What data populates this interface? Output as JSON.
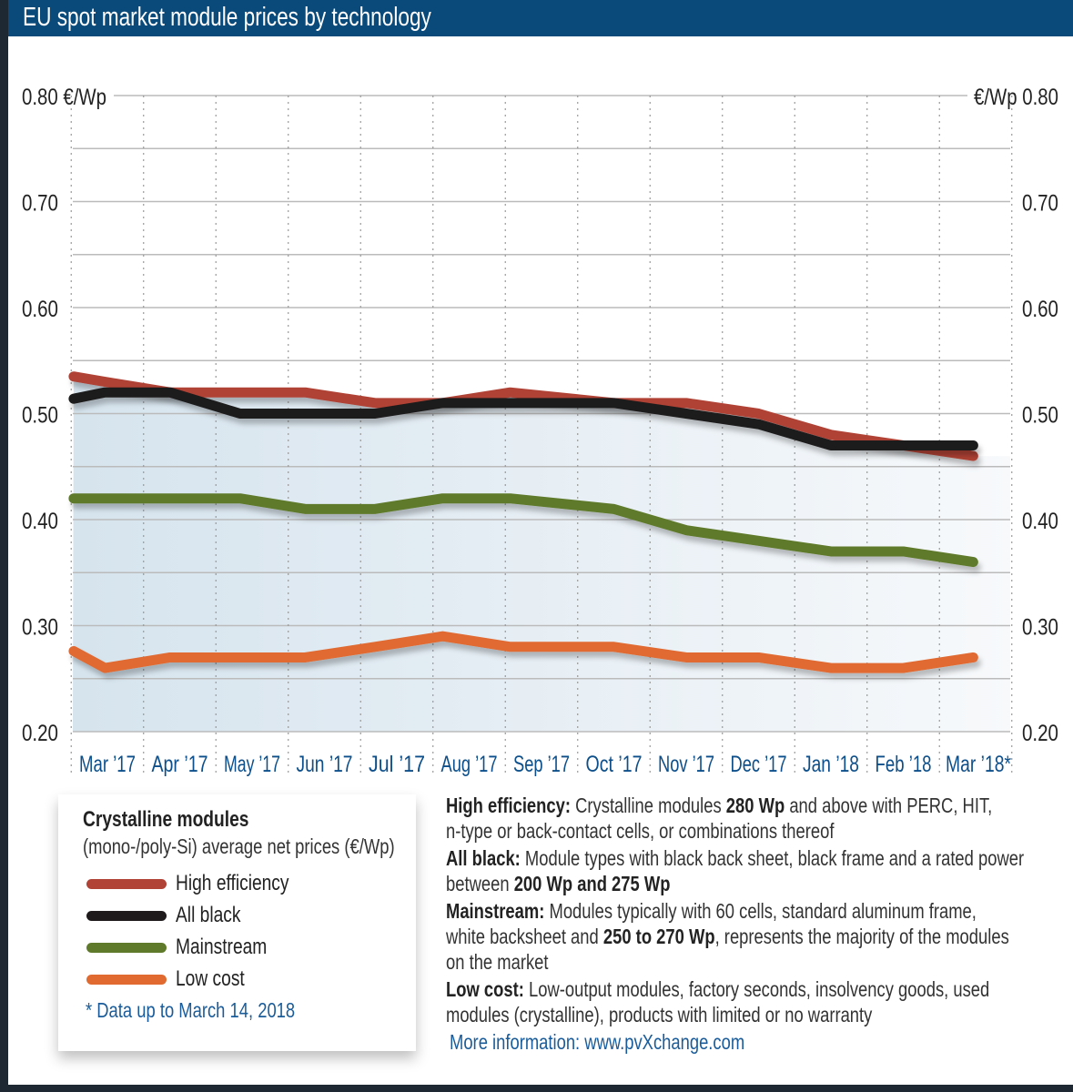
{
  "header": {
    "title": "EU spot market module prices  by technology"
  },
  "chart_data": {
    "type": "line",
    "title": "EU spot market module prices  by technology",
    "y_unit": "€/Wp",
    "ylim": [
      0.2,
      0.8
    ],
    "y_ticks": [
      "0.80",
      "0.70",
      "0.60",
      "0.50",
      "0.40",
      "0.30",
      "0.20"
    ],
    "y_top_left": "0.80 €/Wp",
    "y_top_right": "€/Wp 0.80",
    "x_ticks": [
      "Mar ’17",
      "Apr ’17",
      "May ’17",
      "Jun ’17",
      "Jul ’17",
      "Aug ’17",
      "Sep ’17",
      "Oct ’17",
      "Nov ’17",
      "Dec ’17",
      "Jan ’18",
      "Feb ’18",
      "Mar ’18*"
    ],
    "grid": true,
    "x": [
      "2017-03-01",
      "2017-03-14",
      "2017-04-11",
      "2017-05-10",
      "2017-06-07",
      "2017-07-06",
      "2017-08-04",
      "2017-09-02",
      "2017-10-15",
      "2017-11-15",
      "2017-12-15",
      "2018-01-15",
      "2018-02-15",
      "2018-03-14"
    ],
    "series": [
      {
        "name": "High efficiency",
        "color": "#b04236",
        "values": [
          0.535,
          0.53,
          0.52,
          0.52,
          0.52,
          0.51,
          0.51,
          0.52,
          0.51,
          0.51,
          0.5,
          0.48,
          0.47,
          0.46
        ]
      },
      {
        "name": "All black",
        "color": "#1e1a1b",
        "values": [
          0.514,
          0.52,
          0.52,
          0.5,
          0.5,
          0.5,
          0.51,
          0.51,
          0.51,
          0.5,
          0.49,
          0.47,
          0.47,
          0.47
        ]
      },
      {
        "name": "Mainstream",
        "color": "#5f7a2a",
        "values": [
          0.42,
          0.42,
          0.42,
          0.42,
          0.41,
          0.41,
          0.42,
          0.42,
          0.41,
          0.39,
          0.38,
          0.37,
          0.37,
          0.36
        ]
      },
      {
        "name": "Low cost",
        "color": "#e06a30",
        "values": [
          0.276,
          0.26,
          0.27,
          0.27,
          0.27,
          0.28,
          0.29,
          0.28,
          0.28,
          0.27,
          0.27,
          0.26,
          0.26,
          0.27
        ]
      }
    ]
  },
  "legend": {
    "title": "Crystalline modules",
    "subtitle": "(mono-/poly-Si) average net prices (€/Wp)",
    "note": "* Data up to March 14, 2018"
  },
  "descriptions": [
    [
      {
        "t": "High efficiency:",
        "b": true
      },
      {
        "t": " Crystalline modules "
      },
      {
        "t": "280 Wp",
        "b": true
      },
      {
        "t": " and above with PERC, HIT,"
      }
    ],
    [
      {
        "t": "n-type or back-contact cells, or combinations thereof"
      }
    ],
    [
      {
        "t": "All black:",
        "b": true
      },
      {
        "t": " Module types with black back sheet, black frame and a rated power"
      }
    ],
    [
      {
        "t": "between "
      },
      {
        "t": "200 Wp and 275 Wp",
        "b": true
      }
    ],
    [
      {
        "t": "Mainstream:",
        "b": true
      },
      {
        "t": " Modules typically with 60 cells, standard aluminum frame,"
      }
    ],
    [
      {
        "t": "white backsheet and "
      },
      {
        "t": "250 to 270 Wp",
        "b": true
      },
      {
        "t": ", represents the majority of the modules"
      }
    ],
    [
      {
        "t": "on the market"
      }
    ],
    [
      {
        "t": "Low cost:",
        "b": true
      },
      {
        "t": " Low-output modules, factory seconds, insolvency goods, used"
      }
    ],
    [
      {
        "t": "modules (crystalline), products with limited or no warranty"
      }
    ]
  ],
  "more_info": "More information: www.pvXchange.com"
}
